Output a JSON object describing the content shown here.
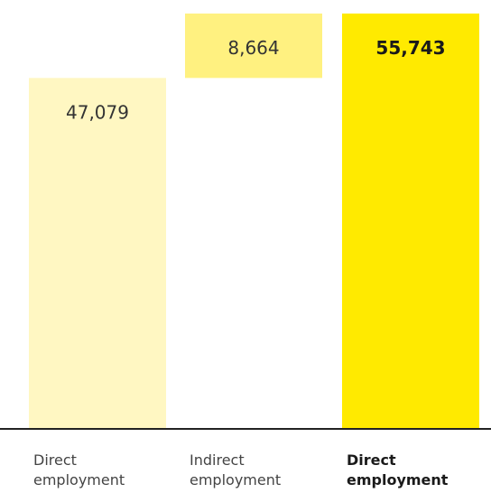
{
  "chart_data": {
    "type": "bar",
    "stacked": true,
    "categories": [
      [
        "Direct",
        "employment"
      ],
      [
        "Indirect",
        "employment"
      ],
      [
        "Direct",
        "employment"
      ]
    ],
    "bars": [
      {
        "base": 0,
        "value": 47079,
        "label": "47,079",
        "color": "#FFF7C2",
        "emphasis": false
      },
      {
        "base": 47079,
        "value": 8664,
        "label": "8,664",
        "color": "#FFF180",
        "emphasis": false
      },
      {
        "base": 0,
        "value": 55743,
        "label": "55,743",
        "color": "#FFEA00",
        "emphasis": true
      }
    ],
    "ylim": [
      0,
      60000
    ],
    "grid": false,
    "legend": "none",
    "title": "",
    "xlabel": "",
    "ylabel": ""
  }
}
